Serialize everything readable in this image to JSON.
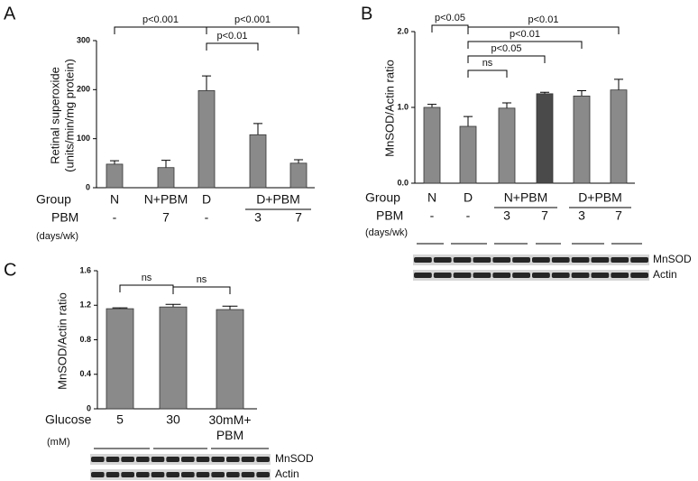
{
  "chart_data": [
    {
      "type": "bar",
      "panel": "A",
      "ylabel": [
        "Retinal superoxide",
        "(units/min/mg protein)"
      ],
      "row_labels": [
        "Group",
        "PBM"
      ],
      "unit_label": "(days/wk)",
      "groups": [
        "N",
        "N+PBM",
        "D",
        "D+PBM",
        null
      ],
      "categories": [
        "-",
        "7",
        "-",
        "3",
        "7"
      ],
      "values": [
        48,
        41,
        198,
        108,
        50
      ],
      "errors": [
        7,
        15,
        30,
        23,
        7
      ],
      "colors": [
        "#8a8a8a",
        "#8a8a8a",
        "#8a8a8a",
        "#8a8a8a",
        "#8a8a8a"
      ],
      "ylim": [
        0,
        300
      ],
      "yticks": [
        0,
        100,
        200,
        300
      ],
      "comparisons": [
        {
          "label": "p<0.001",
          "between": [
            0,
            2
          ]
        },
        {
          "label": "p<0.001",
          "between": [
            2,
            4
          ]
        },
        {
          "label": "p<0.01",
          "between": [
            2,
            3
          ]
        }
      ]
    },
    {
      "type": "bar",
      "panel": "B",
      "ylabel": [
        "MnSOD/Actin ratio"
      ],
      "row_labels": [
        "Group",
        "PBM"
      ],
      "unit_label": "(days/wk)",
      "groups": [
        "N",
        "D",
        "N+PBM",
        null,
        "D+PBM",
        null
      ],
      "categories": [
        "-",
        "-",
        "3",
        "7",
        "3",
        "7"
      ],
      "values": [
        1.0,
        0.75,
        0.99,
        1.18,
        1.15,
        1.23
      ],
      "errors": [
        0.04,
        0.13,
        0.07,
        0.02,
        0.07,
        0.14
      ],
      "colors": [
        "#8a8a8a",
        "#8a8a8a",
        "#8a8a8a",
        "#4a4a4a",
        "#8a8a8a",
        "#8a8a8a"
      ],
      "ylim": [
        0,
        2
      ],
      "yticks": [
        {
          "value": 0,
          "label": "0.0"
        },
        {
          "value": 1,
          "label": "1.0"
        },
        {
          "value": 2,
          "label": "2.0"
        }
      ],
      "comparisons": [
        {
          "label": "p<0.05",
          "between": [
            0,
            1
          ]
        },
        {
          "label": "p<0.01",
          "between": [
            1,
            5
          ]
        },
        {
          "label": "p<0.01",
          "between": [
            1,
            4
          ]
        },
        {
          "label": "p<0.05",
          "between": [
            1,
            3
          ]
        },
        {
          "label": "ns",
          "between": [
            1,
            2
          ]
        }
      ],
      "blot_labels": [
        "MnSOD",
        "Actin"
      ]
    },
    {
      "type": "bar",
      "panel": "C",
      "ylabel": [
        "MnSOD/Actin ratio"
      ],
      "row_labels": [
        "Glucose"
      ],
      "unit_label": "(mM)",
      "categories": [
        "5",
        "30",
        "30mM+\nPBM"
      ],
      "values": [
        1.16,
        1.18,
        1.15
      ],
      "errors": [
        0.01,
        0.03,
        0.04
      ],
      "colors": [
        "#8a8a8a",
        "#8a8a8a",
        "#8a8a8a"
      ],
      "ylim": [
        0,
        1.6
      ],
      "yticks": [
        0,
        0.4,
        0.8,
        1.2,
        1.6
      ],
      "comparisons": [
        {
          "label": "ns",
          "between": [
            0,
            1
          ]
        },
        {
          "label": "ns",
          "between": [
            1,
            2
          ]
        }
      ],
      "blot_labels": [
        "MnSOD",
        "Actin"
      ]
    }
  ]
}
